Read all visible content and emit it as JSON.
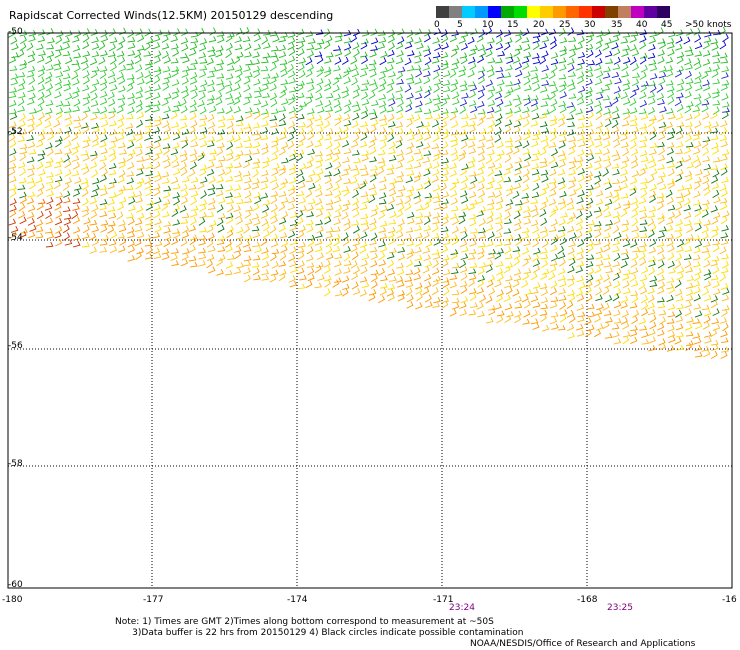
{
  "title": "Rapidscat Corrected Winds(12.5KM) 20150129 descending",
  "colorbar": {
    "labels": [
      "0",
      "5",
      "10",
      "15",
      "20",
      "25",
      "30",
      "35",
      "40",
      "45",
      ">50 knots"
    ],
    "colors": [
      "#404040",
      "#808080",
      "#00ccff",
      "#0099ff",
      "#0000ff",
      "#00aa00",
      "#00dd00",
      "#ffff00",
      "#ffcc00",
      "#ff9900",
      "#ff6600",
      "#ff3300",
      "#cc0000",
      "#804000",
      "#c08060",
      "#c000c0",
      "#6000a0",
      "#300060"
    ]
  },
  "map": {
    "lat_labels": [
      "-50",
      "-52",
      "-54",
      "-56",
      "-58",
      "-60"
    ],
    "lon_labels": [
      "-180",
      "-177",
      "-174",
      "-171",
      "-168",
      "-16"
    ],
    "time_labels": [
      "23:24",
      "23:25"
    ]
  },
  "notes": {
    "line1": "Note: 1) Times are GMT 2)Times along bottom correspond to measurement at ~50S",
    "line2": "      3)Data buffer is 22 hrs from 20150129 4) Black circles indicate possible contamination"
  },
  "credit": "NOAA/NESDIS/Office of Research and Applications"
}
